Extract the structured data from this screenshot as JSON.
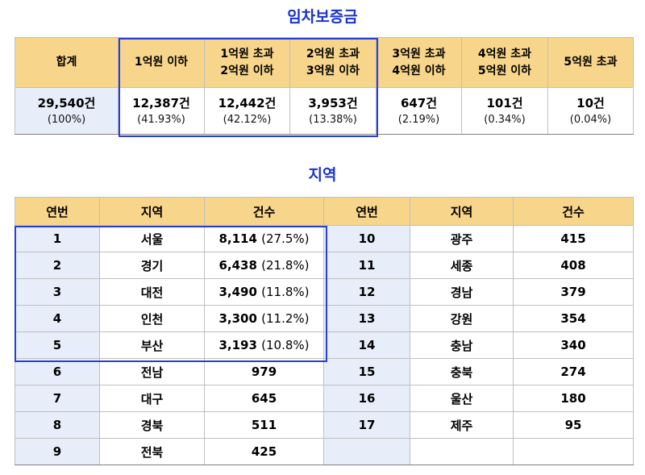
{
  "deposit": {
    "title": "임차보증금",
    "headers": [
      [
        "합계"
      ],
      [
        "1억원 이하"
      ],
      [
        "1억원 초과",
        "2억원 이하"
      ],
      [
        "2억원 초과",
        "3억원 이하"
      ],
      [
        "3억원 초과",
        "4억원 이하"
      ],
      [
        "4억원 초과",
        "5억원 이하"
      ],
      [
        "5억원 초과"
      ]
    ],
    "counts": [
      "29,540건",
      "12,387건",
      "12,442건",
      "3,953건",
      "647건",
      "101건",
      "10건"
    ],
    "percents": [
      "(100%)",
      "(41.93%)",
      "(42.12%)",
      "(13.38%)",
      "(2.19%)",
      "(0.34%)",
      "(0.04%)"
    ]
  },
  "region": {
    "title": "지역",
    "headers": [
      "연번",
      "지역",
      "건수",
      "연번",
      "지역",
      "건수"
    ],
    "rows": [
      {
        "no": "1",
        "name": "서울",
        "count": "8,114",
        "pct": "(27.5%)",
        "no2": "10",
        "name2": "광주",
        "count2": "415"
      },
      {
        "no": "2",
        "name": "경기",
        "count": "6,438",
        "pct": "(21.8%)",
        "no2": "11",
        "name2": "세종",
        "count2": "408"
      },
      {
        "no": "3",
        "name": "대전",
        "count": "3,490",
        "pct": "(11.8%)",
        "no2": "12",
        "name2": "경남",
        "count2": "379"
      },
      {
        "no": "4",
        "name": "인천",
        "count": "3,300",
        "pct": "(11.2%)",
        "no2": "13",
        "name2": "강원",
        "count2": "354"
      },
      {
        "no": "5",
        "name": "부산",
        "count": "3,193",
        "pct": "(10.8%)",
        "no2": "14",
        "name2": "충남",
        "count2": "340"
      },
      {
        "no": "6",
        "name": "전남",
        "count": "979",
        "pct": "",
        "no2": "15",
        "name2": "충북",
        "count2": "274"
      },
      {
        "no": "7",
        "name": "대구",
        "count": "645",
        "pct": "",
        "no2": "16",
        "name2": "울산",
        "count2": "180"
      },
      {
        "no": "8",
        "name": "경북",
        "count": "511",
        "pct": "",
        "no2": "17",
        "name2": "제주",
        "count2": "95"
      },
      {
        "no": "9",
        "name": "전북",
        "count": "425",
        "pct": "",
        "no2": "",
        "name2": "",
        "count2": ""
      }
    ]
  },
  "colors": {
    "title": "#1a33cc",
    "header_bg": "#f7d68b",
    "index_bg": "#e7eef9",
    "highlight_border": "#2a3dd6"
  }
}
